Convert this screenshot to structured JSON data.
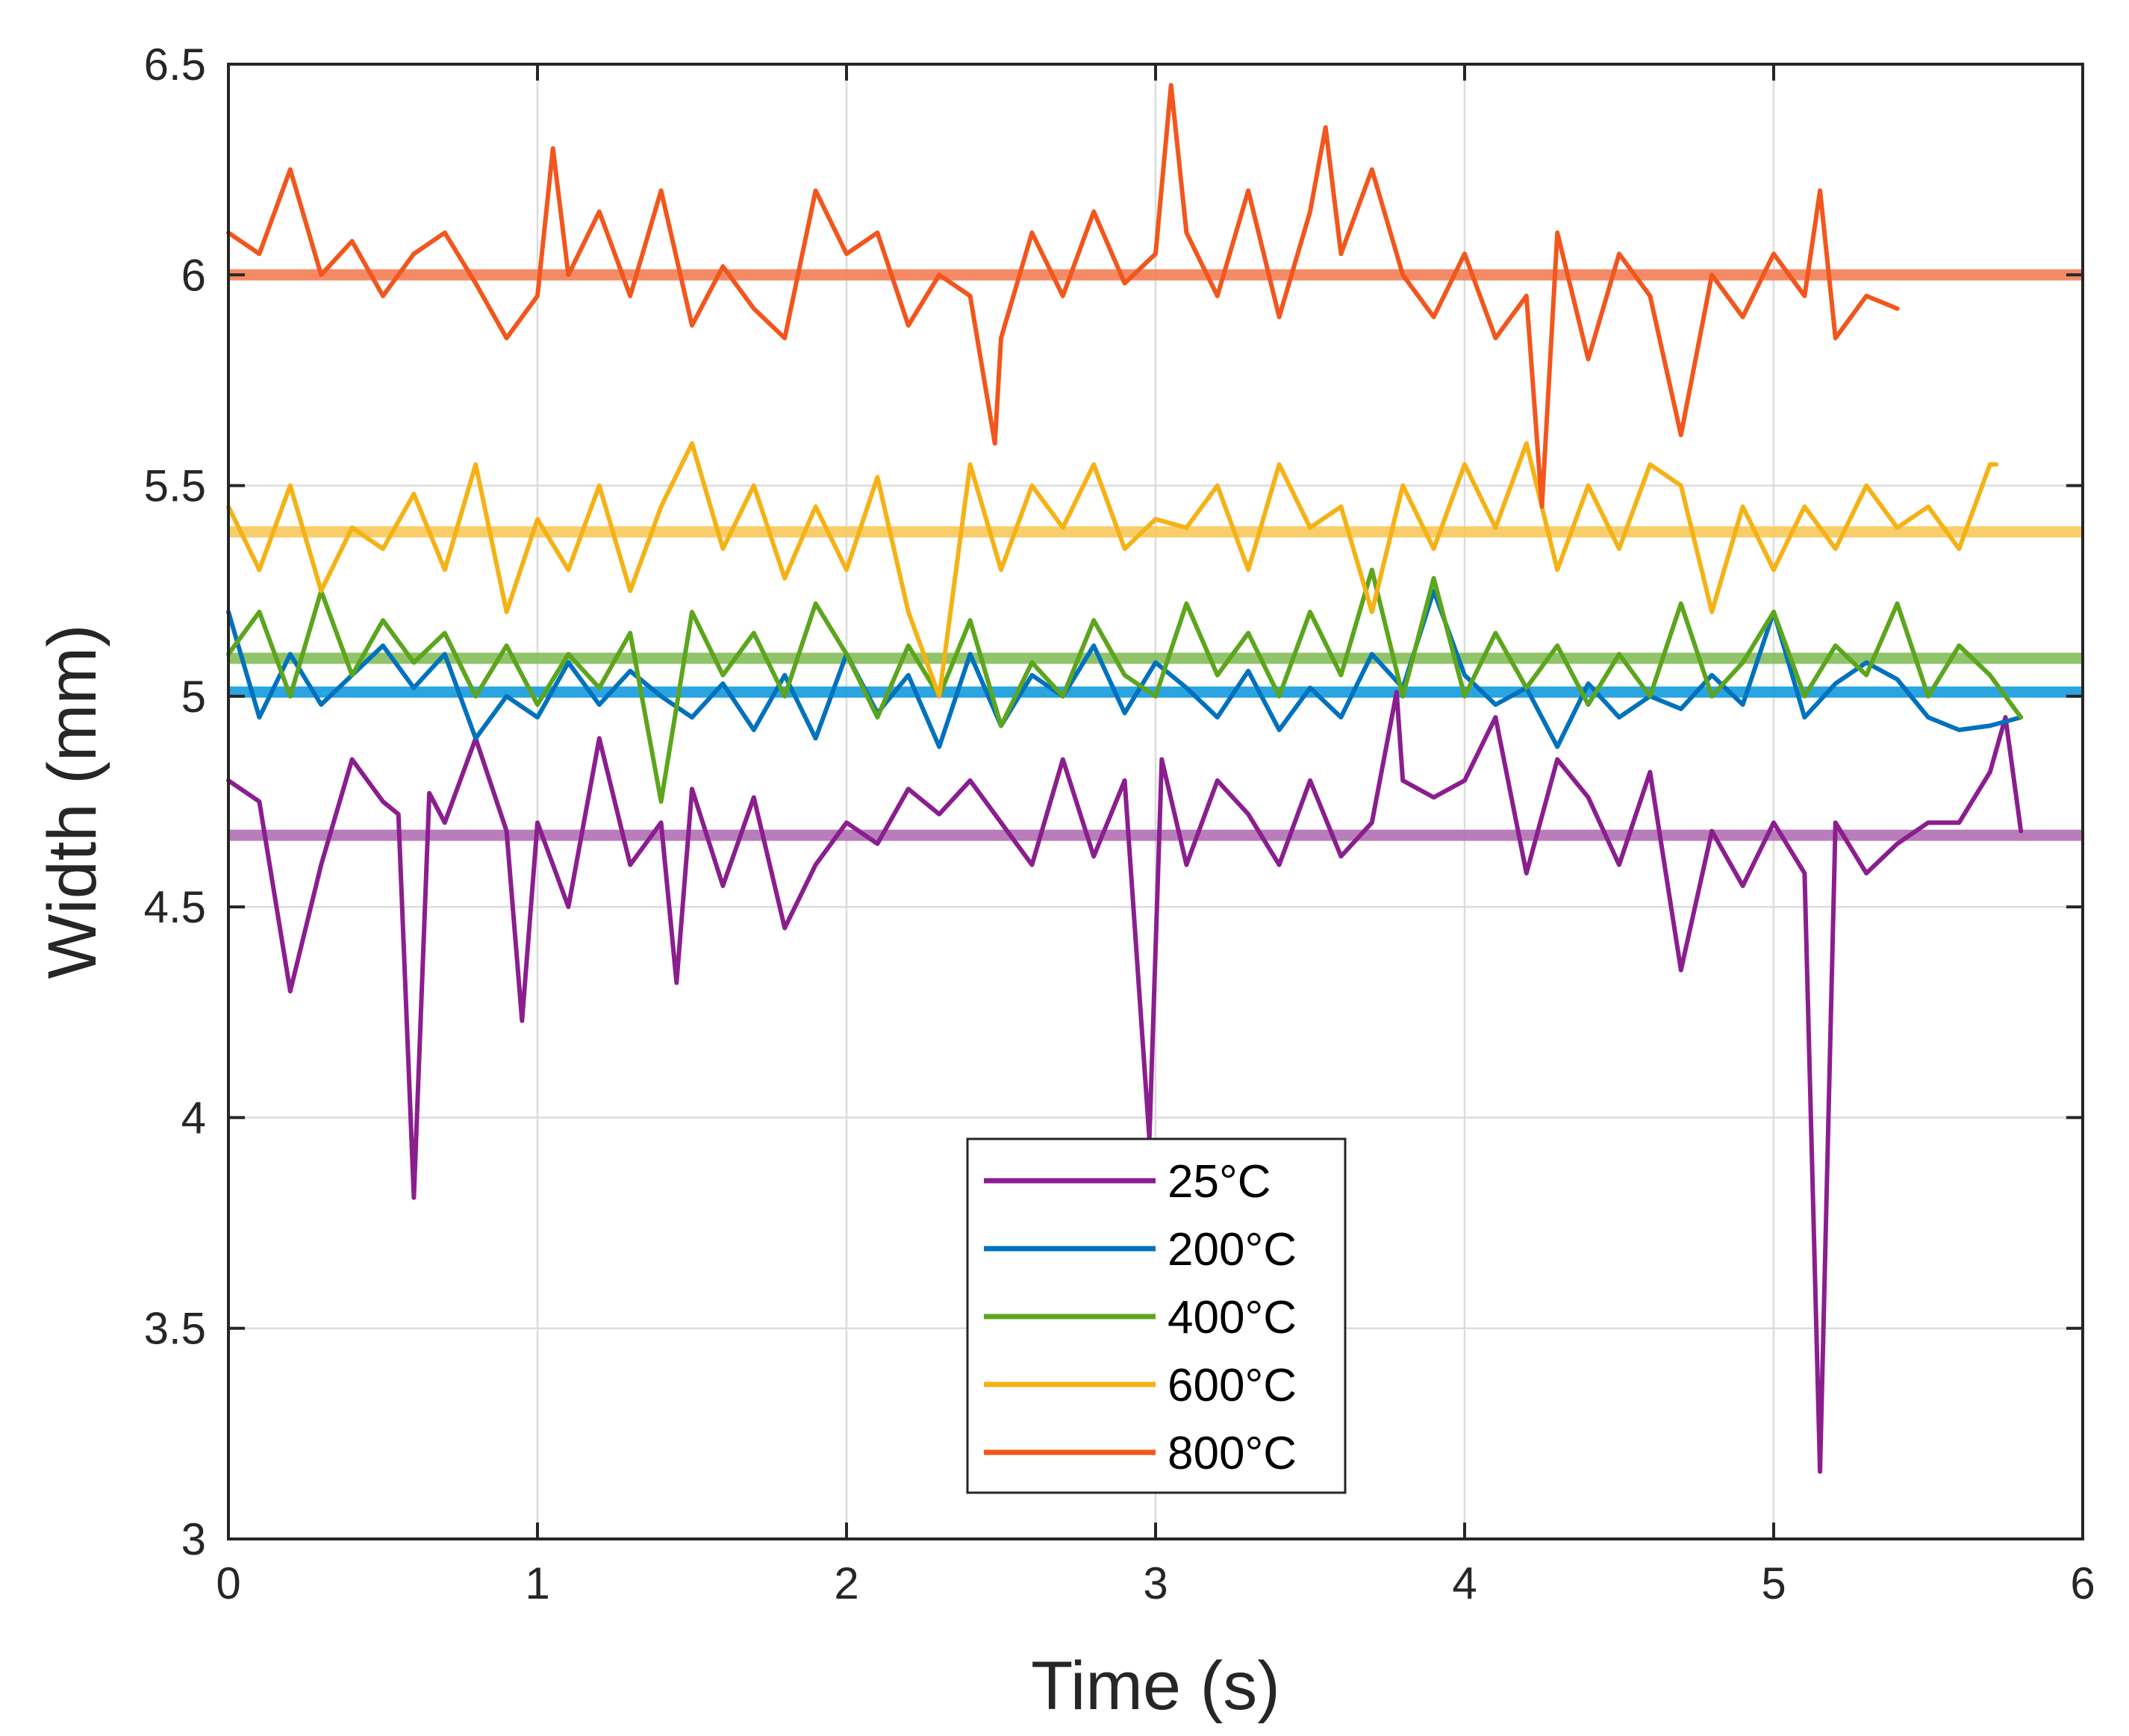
{
  "chart_data": {
    "type": "line",
    "title": "",
    "xlabel": "Time (s)",
    "ylabel": "Width (mm)",
    "xlim": [
      0,
      6
    ],
    "ylim": [
      3,
      6.5
    ],
    "xticks": [
      0,
      1,
      2,
      3,
      4,
      5,
      6
    ],
    "xtick_labels": [
      "0",
      "1",
      "2",
      "3",
      "4",
      "5",
      "6"
    ],
    "yticks": [
      3,
      3.5,
      4,
      4.5,
      5,
      5.5,
      6,
      6.5
    ],
    "ytick_labels": [
      "3",
      "3.5",
      "4",
      "4.5",
      "5",
      "5.5",
      "6",
      "6.5"
    ],
    "grid": true,
    "legend_position": "bottom-center",
    "series": [
      {
        "name": "25°C",
        "color": "#8B1E8E",
        "mean": 4.67,
        "mean_color": "#B06FB3",
        "x": [
          0,
          0.1,
          0.2,
          0.3,
          0.4,
          0.5,
          0.55,
          0.6,
          0.65,
          0.7,
          0.8,
          0.9,
          0.95,
          1,
          1.1,
          1.2,
          1.3,
          1.4,
          1.45,
          1.5,
          1.6,
          1.7,
          1.8,
          1.9,
          2,
          2.1,
          2.2,
          2.3,
          2.4,
          2.5,
          2.6,
          2.7,
          2.8,
          2.9,
          2.98,
          3.02,
          3.1,
          3.2,
          3.3,
          3.4,
          3.5,
          3.6,
          3.7,
          3.78,
          3.8,
          3.9,
          4,
          4.1,
          4.2,
          4.3,
          4.4,
          4.5,
          4.6,
          4.7,
          4.8,
          4.9,
          5,
          5.1,
          5.15,
          5.2,
          5.3,
          5.4,
          5.5,
          5.6,
          5.7,
          5.75,
          5.8
        ],
        "values": [
          4.8,
          4.75,
          4.3,
          4.6,
          4.85,
          4.75,
          4.72,
          3.81,
          4.77,
          4.7,
          4.9,
          4.68,
          4.23,
          4.7,
          4.5,
          4.9,
          4.6,
          4.7,
          4.32,
          4.78,
          4.55,
          4.76,
          4.45,
          4.6,
          4.7,
          4.65,
          4.78,
          4.72,
          4.8,
          4.7,
          4.6,
          4.85,
          4.62,
          4.8,
          3.95,
          4.85,
          4.6,
          4.8,
          4.72,
          4.6,
          4.8,
          4.62,
          4.7,
          5.01,
          4.8,
          4.76,
          4.8,
          4.95,
          4.58,
          4.85,
          4.76,
          4.6,
          4.82,
          4.35,
          4.68,
          4.55,
          4.7,
          4.58,
          3.16,
          4.7,
          4.58,
          4.65,
          4.7,
          4.7,
          4.82,
          4.95,
          4.68
        ]
      },
      {
        "name": "200°C",
        "color": "#0072BD",
        "mean": 5.01,
        "mean_color": "#139BDE",
        "x": [
          0,
          0.1,
          0.2,
          0.3,
          0.4,
          0.5,
          0.6,
          0.7,
          0.8,
          0.9,
          1,
          1.1,
          1.2,
          1.3,
          1.4,
          1.5,
          1.6,
          1.7,
          1.8,
          1.9,
          2,
          2.1,
          2.2,
          2.3,
          2.4,
          2.5,
          2.6,
          2.7,
          2.8,
          2.9,
          3,
          3.1,
          3.2,
          3.3,
          3.4,
          3.5,
          3.6,
          3.7,
          3.8,
          3.9,
          4,
          4.1,
          4.2,
          4.3,
          4.4,
          4.5,
          4.6,
          4.7,
          4.8,
          4.9,
          5,
          5.1,
          5.2,
          5.3,
          5.4,
          5.5,
          5.6,
          5.7,
          5.8
        ],
        "values": [
          5.2,
          4.95,
          5.1,
          4.98,
          5.05,
          5.12,
          5.02,
          5.1,
          4.9,
          5.0,
          4.95,
          5.08,
          4.98,
          5.06,
          5.0,
          4.95,
          5.03,
          4.92,
          5.05,
          4.9,
          5.1,
          4.96,
          5.05,
          4.88,
          5.1,
          4.93,
          5.05,
          5.0,
          5.12,
          4.96,
          5.08,
          5.02,
          4.95,
          5.06,
          4.92,
          5.02,
          4.95,
          5.1,
          5.02,
          5.25,
          5.05,
          4.98,
          5.02,
          4.88,
          5.03,
          4.95,
          5.0,
          4.97,
          5.05,
          4.98,
          5.2,
          4.95,
          5.03,
          5.08,
          5.04,
          4.95,
          4.92,
          4.93,
          4.95
        ]
      },
      {
        "name": "400°C",
        "color": "#5CA51D",
        "mean": 5.09,
        "mean_color": "#84BC5A",
        "x": [
          0,
          0.1,
          0.2,
          0.3,
          0.4,
          0.5,
          0.6,
          0.7,
          0.8,
          0.9,
          1,
          1.1,
          1.2,
          1.3,
          1.4,
          1.5,
          1.6,
          1.7,
          1.8,
          1.9,
          2,
          2.1,
          2.2,
          2.3,
          2.4,
          2.5,
          2.6,
          2.7,
          2.8,
          2.9,
          3,
          3.1,
          3.2,
          3.3,
          3.4,
          3.5,
          3.6,
          3.7,
          3.8,
          3.9,
          4,
          4.1,
          4.2,
          4.3,
          4.4,
          4.5,
          4.6,
          4.7,
          4.8,
          4.9,
          5,
          5.1,
          5.2,
          5.3,
          5.4,
          5.5,
          5.6,
          5.7,
          5.75,
          5.8
        ],
        "values": [
          5.1,
          5.2,
          5.0,
          5.25,
          5.05,
          5.18,
          5.08,
          5.15,
          5.0,
          5.12,
          4.98,
          5.1,
          5.02,
          5.15,
          4.75,
          5.2,
          5.05,
          5.15,
          5.0,
          5.22,
          5.1,
          4.95,
          5.12,
          5.0,
          5.18,
          4.93,
          5.08,
          5.0,
          5.18,
          5.05,
          5.0,
          5.22,
          5.05,
          5.15,
          5.0,
          5.2,
          5.05,
          5.3,
          5.0,
          5.28,
          5.0,
          5.15,
          5.02,
          5.12,
          4.98,
          5.1,
          5.0,
          5.22,
          5.0,
          5.08,
          5.2,
          5.0,
          5.12,
          5.05,
          5.22,
          5.0,
          5.12,
          5.05,
          5.0,
          4.95
        ]
      },
      {
        "name": "600°C",
        "color": "#F5B216",
        "mean": 5.39,
        "mean_color": "#F8C85A",
        "x": [
          0,
          0.1,
          0.2,
          0.3,
          0.4,
          0.5,
          0.6,
          0.7,
          0.8,
          0.9,
          1,
          1.1,
          1.2,
          1.3,
          1.4,
          1.5,
          1.6,
          1.7,
          1.8,
          1.9,
          2,
          2.1,
          2.2,
          2.3,
          2.4,
          2.5,
          2.6,
          2.7,
          2.8,
          2.9,
          3,
          3.1,
          3.2,
          3.3,
          3.4,
          3.5,
          3.6,
          3.7,
          3.8,
          3.9,
          4,
          4.1,
          4.2,
          4.3,
          4.4,
          4.5,
          4.6,
          4.7,
          4.8,
          4.9,
          5,
          5.1,
          5.2,
          5.3,
          5.4,
          5.5,
          5.6,
          5.7,
          5.72
        ],
        "values": [
          5.45,
          5.3,
          5.5,
          5.25,
          5.4,
          5.35,
          5.48,
          5.3,
          5.55,
          5.2,
          5.42,
          5.3,
          5.5,
          5.25,
          5.45,
          5.6,
          5.35,
          5.5,
          5.28,
          5.45,
          5.3,
          5.52,
          5.2,
          5.0,
          5.55,
          5.3,
          5.5,
          5.4,
          5.55,
          5.35,
          5.42,
          5.4,
          5.5,
          5.3,
          5.55,
          5.4,
          5.45,
          5.2,
          5.5,
          5.35,
          5.55,
          5.4,
          5.6,
          5.3,
          5.5,
          5.35,
          5.55,
          5.5,
          5.2,
          5.45,
          5.3,
          5.45,
          5.35,
          5.5,
          5.4,
          5.45,
          5.35,
          5.55,
          5.55
        ]
      },
      {
        "name": "800°C",
        "color": "#F2561D",
        "mean": 6.0,
        "mean_color": "#F47E55",
        "x": [
          0,
          0.1,
          0.2,
          0.3,
          0.4,
          0.5,
          0.6,
          0.7,
          0.8,
          0.9,
          1,
          1.05,
          1.1,
          1.2,
          1.3,
          1.4,
          1.5,
          1.6,
          1.7,
          1.8,
          1.9,
          2,
          2.1,
          2.2,
          2.3,
          2.4,
          2.48,
          2.5,
          2.6,
          2.7,
          2.8,
          2.9,
          3,
          3.05,
          3.1,
          3.2,
          3.3,
          3.4,
          3.5,
          3.55,
          3.6,
          3.7,
          3.8,
          3.9,
          4,
          4.1,
          4.2,
          4.25,
          4.3,
          4.4,
          4.5,
          4.6,
          4.7,
          4.8,
          4.9,
          5,
          5.1,
          5.15,
          5.2,
          5.3,
          5.4
        ],
        "values": [
          6.1,
          6.05,
          6.25,
          6.0,
          6.08,
          5.95,
          6.05,
          6.1,
          5.98,
          5.85,
          5.95,
          6.3,
          6.0,
          6.15,
          5.95,
          6.2,
          5.88,
          6.02,
          5.92,
          5.85,
          6.2,
          6.05,
          6.1,
          5.88,
          6.0,
          5.95,
          5.6,
          5.85,
          6.1,
          5.95,
          6.15,
          5.98,
          6.05,
          6.45,
          6.1,
          5.95,
          6.2,
          5.9,
          6.15,
          6.35,
          6.05,
          6.25,
          6.0,
          5.9,
          6.05,
          5.85,
          5.95,
          5.45,
          6.1,
          5.8,
          6.05,
          5.95,
          5.62,
          6.0,
          5.9,
          6.05,
          5.95,
          6.2,
          5.85,
          5.95,
          5.92
        ]
      }
    ]
  }
}
